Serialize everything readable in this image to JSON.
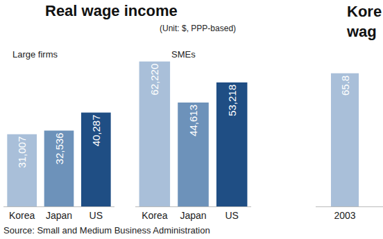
{
  "title": "Real wage income",
  "subtitle": "(Unit: $, PPP-based)",
  "source": "Source: Small and Medium Business Administration",
  "chart_data": [
    {
      "type": "bar",
      "title": "Large firms",
      "categories": [
        "Korea",
        "Japan",
        "US"
      ],
      "values": [
        31007,
        32536,
        40287
      ],
      "value_labels": [
        "31,007",
        "32,536",
        "40,287"
      ],
      "colors": [
        "#a9bfd9",
        "#6d92ba",
        "#1f4e84"
      ],
      "ylim": [
        0,
        66000
      ],
      "data_labels": true,
      "tick_labels": "x",
      "grid": false
    },
    {
      "type": "bar",
      "title": "SMEs",
      "categories": [
        "Korea",
        "Japan",
        "US"
      ],
      "values": [
        62220,
        44613,
        53218
      ],
      "value_labels": [
        "62,220",
        "44,613",
        "53,218"
      ],
      "colors": [
        "#a9bfd9",
        "#6d92ba",
        "#1f4e84"
      ],
      "ylim": [
        0,
        66000
      ],
      "data_labels": true,
      "tick_labels": "x",
      "grid": false
    },
    {
      "type": "bar",
      "title": "Kore\nwag",
      "categories": [
        "2003"
      ],
      "values": [
        65.8
      ],
      "colors": [
        "#a9bfd9"
      ],
      "ylim": [
        0,
        76
      ],
      "data_labels": true,
      "tick_labels": "x",
      "grid": false
    }
  ]
}
